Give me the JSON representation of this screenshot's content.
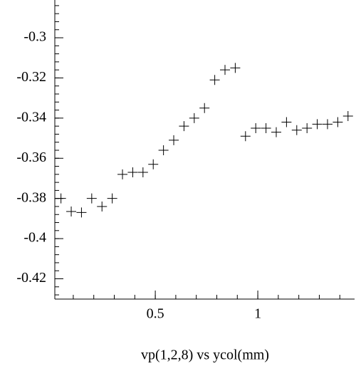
{
  "chart_data": {
    "type": "scatter",
    "xlabel": "vp(1,2,8) vs ycol(mm)",
    "x": [
      0.04,
      0.09,
      0.14,
      0.19,
      0.24,
      0.29,
      0.34,
      0.39,
      0.44,
      0.49,
      0.54,
      0.59,
      0.64,
      0.69,
      0.74,
      0.79,
      0.84,
      0.89,
      0.94,
      0.99,
      1.04,
      1.09,
      1.14,
      1.19,
      1.24,
      1.29,
      1.34,
      1.39,
      1.44
    ],
    "values": [
      -0.38,
      -0.3865,
      -0.387,
      -0.38,
      -0.384,
      -0.38,
      -0.368,
      -0.367,
      -0.367,
      -0.363,
      -0.356,
      -0.351,
      -0.344,
      -0.34,
      -0.335,
      -0.321,
      -0.316,
      -0.315,
      -0.349,
      -0.345,
      -0.345,
      -0.347,
      -0.342,
      -0.346,
      -0.345,
      -0.343,
      -0.343,
      -0.342,
      -0.339
    ],
    "color": "#000000",
    "xlim": [
      0.01,
      1.472
    ],
    "xticks": [
      0.5,
      1
    ],
    "ylim": [
      -0.4301,
      -0.2812
    ],
    "yticks": [
      -0.3,
      -0.32,
      -0.34,
      -0.36,
      -0.38,
      -0.4,
      -0.42
    ]
  }
}
